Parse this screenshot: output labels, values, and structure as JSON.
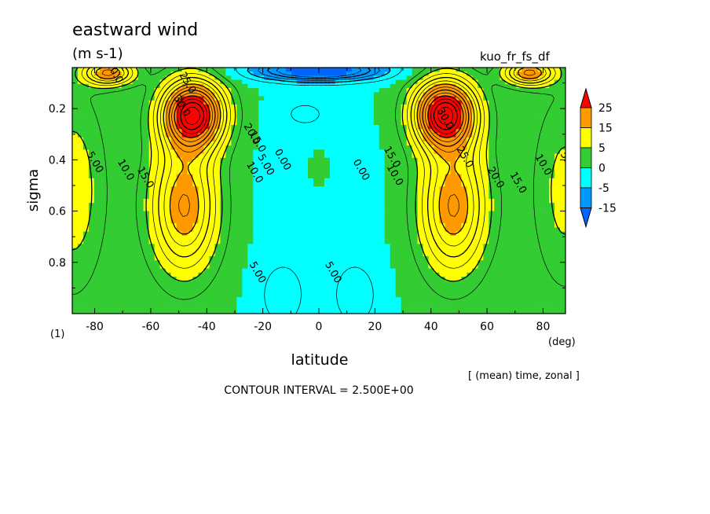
{
  "header": {
    "title": "eastward wind",
    "units": "(m s-1)",
    "run_name": "kuo_fr_fs_df"
  },
  "footer": {
    "subtitle": "[ (mean) time, zonal ]",
    "contour_interval": "CONTOUR INTERVAL = 2.500E+00",
    "panel_index": "(1)"
  },
  "chart_data": {
    "type": "heatmap",
    "subtype": "latitude-sigma filled contour",
    "xlabel": "latitude",
    "xunit": "(deg)",
    "ylabel": "sigma",
    "xlim": [
      -88,
      88
    ],
    "ylim": [
      1.0,
      0.04
    ],
    "y_inverted": true,
    "x_ticks": [
      -80,
      -60,
      -40,
      -20,
      0,
      20,
      40,
      60,
      80
    ],
    "y_ticks": [
      0.2,
      0.4,
      0.6,
      0.8
    ],
    "contour_interval": 2.5,
    "negative_contours_dashed": true,
    "colorbar": {
      "labels": [
        "25",
        "15",
        "5",
        "0",
        "-5",
        "-15"
      ],
      "colors": [
        "#ff0000",
        "#ff9900",
        "#ffff00",
        "#33cc33",
        "#00ffff",
        "#0099ff",
        "#0066ff"
      ]
    },
    "contour_labels": [
      {
        "text": "20.0",
        "lat": -73,
        "sigma": 0.06
      },
      {
        "text": "25.0",
        "lat": -47,
        "sigma": 0.1
      },
      {
        "text": "30.0",
        "lat": -49,
        "sigma": 0.19
      },
      {
        "text": "20.0",
        "lat": -24,
        "sigma": 0.3
      },
      {
        "text": "15.0",
        "lat": -22,
        "sigma": 0.33
      },
      {
        "text": "10.0",
        "lat": -23,
        "sigma": 0.45
      },
      {
        "text": "5.00",
        "lat": -19,
        "sigma": 0.42
      },
      {
        "text": "0.00",
        "lat": -13,
        "sigma": 0.4
      },
      {
        "text": "5.00",
        "lat": -80,
        "sigma": 0.41
      },
      {
        "text": "10.0",
        "lat": -69,
        "sigma": 0.44
      },
      {
        "text": "15.0",
        "lat": -62,
        "sigma": 0.47
      },
      {
        "text": "5.00",
        "lat": -22,
        "sigma": 0.84
      },
      {
        "text": "0.00",
        "lat": 15,
        "sigma": 0.44
      },
      {
        "text": "15.0",
        "lat": 26,
        "sigma": 0.39
      },
      {
        "text": "10.0",
        "lat": 27,
        "sigma": 0.46
      },
      {
        "text": "30.0",
        "lat": 45,
        "sigma": 0.24
      },
      {
        "text": "25.0",
        "lat": 52,
        "sigma": 0.39
      },
      {
        "text": "20.0",
        "lat": 63,
        "sigma": 0.47
      },
      {
        "text": "15.0",
        "lat": 71,
        "sigma": 0.49
      },
      {
        "text": "10.0",
        "lat": 80,
        "sigma": 0.42
      },
      {
        "text": "5.00",
        "lat": 89,
        "sigma": 0.41
      },
      {
        "text": "5.00",
        "lat": 5,
        "sigma": 0.84
      }
    ]
  }
}
